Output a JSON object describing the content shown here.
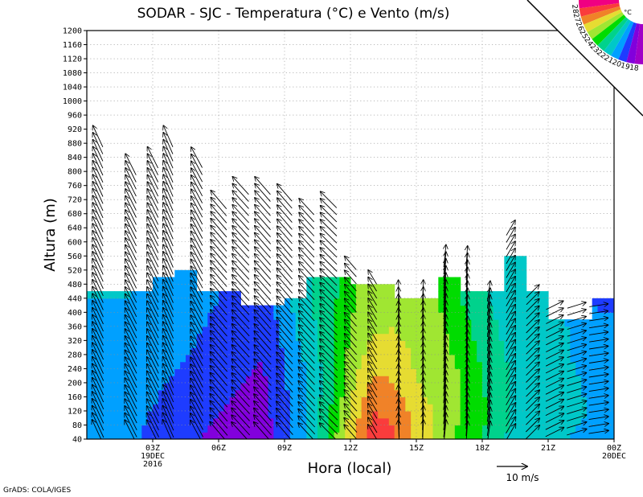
{
  "chart_data": {
    "type": "heatmap",
    "title": "SODAR - SJC - Temperatura (°C) e Vento (m/s)",
    "xlabel": "Hora (local)",
    "ylabel": "Altura (m)",
    "x_range_hours": [
      0,
      23.5
    ],
    "ylim": [
      40,
      1200
    ],
    "y_ticks": [
      40,
      80,
      120,
      160,
      200,
      240,
      280,
      320,
      360,
      400,
      440,
      480,
      520,
      560,
      600,
      640,
      680,
      720,
      760,
      800,
      840,
      880,
      920,
      960,
      1000,
      1040,
      1080,
      1120,
      1160,
      1200
    ],
    "x_ticks": [
      {
        "hour": 3,
        "label": "03Z",
        "sub1": "19DEC",
        "sub2": "2016"
      },
      {
        "hour": 6,
        "label": "06Z"
      },
      {
        "hour": 9,
        "label": "09Z"
      },
      {
        "hour": 12,
        "label": "12Z"
      },
      {
        "hour": 15,
        "label": "15Z"
      },
      {
        "hour": 18,
        "label": "18Z"
      },
      {
        "hour": 21,
        "label": "21Z"
      },
      {
        "hour": 24,
        "label": "00Z",
        "sub1": "20DEC"
      }
    ],
    "color_legend": {
      "unit": "°C",
      "levels": [
        "18",
        "19",
        "20",
        "21",
        "22",
        "23",
        "24",
        "25",
        "26",
        "27",
        "28"
      ],
      "colors": [
        "#a000c8",
        "#8200dc",
        "#1e3cff",
        "#00a0ff",
        "#00c8c8",
        "#00d28c",
        "#00dc00",
        "#a0e632",
        "#e6dc32",
        "#f08228",
        "#fa3c3c",
        "#f00082"
      ]
    },
    "data_top_profile": {
      "hours": [
        0,
        2,
        3,
        4,
        5,
        7,
        9,
        10,
        11,
        12,
        13,
        14,
        15,
        16,
        17,
        18,
        19,
        20,
        21,
        22,
        23,
        23.5
      ],
      "top_m": [
        460,
        460,
        500,
        520,
        460,
        420,
        440,
        500,
        500,
        480,
        480,
        440,
        440,
        500,
        460,
        460,
        560,
        460,
        380,
        380,
        440,
        440
      ]
    },
    "temperature_grid": {
      "hours": [
        0,
        2,
        4,
        6,
        8,
        10,
        11,
        12,
        13,
        14,
        15,
        16,
        17,
        18,
        19,
        20,
        21,
        22,
        23.5
      ],
      "heights_m": [
        40,
        120,
        200,
        280,
        360,
        440,
        520
      ],
      "values": [
        [
          20.5,
          20.6,
          20.8,
          20.9,
          21.0,
          21.0,
          21.0
        ],
        [
          20.2,
          20.4,
          20.6,
          20.8,
          20.9,
          21.0,
          21.0
        ],
        [
          19.2,
          19.5,
          19.9,
          20.2,
          20.4,
          20.5,
          20.5
        ],
        [
          18.8,
          19.0,
          19.3,
          19.6,
          19.8,
          20.0,
          20.0
        ],
        [
          18.5,
          18.6,
          18.8,
          19.0,
          19.2,
          19.6,
          19.6
        ],
        [
          20.8,
          20.9,
          21.0,
          21.2,
          21.6,
          21.8,
          21.8
        ],
        [
          23.0,
          22.8,
          22.5,
          22.5,
          22.6,
          22.5,
          22.5
        ],
        [
          25.8,
          25.2,
          24.6,
          24.3,
          24.0,
          23.8,
          23.8
        ],
        [
          27.4,
          27.0,
          26.2,
          25.5,
          24.8,
          24.6,
          24.6
        ],
        [
          27.2,
          26.8,
          26.0,
          25.5,
          25.0,
          24.8,
          24.8
        ],
        [
          25.8,
          25.5,
          25.0,
          24.8,
          24.5,
          24.4,
          24.4
        ],
        [
          24.6,
          24.8,
          24.6,
          24.4,
          24.2,
          24.0,
          24.0
        ],
        [
          23.8,
          24.0,
          24.0,
          23.8,
          23.5,
          23.0,
          23.0
        ],
        [
          23.0,
          23.2,
          23.0,
          22.8,
          22.5,
          22.2,
          22.2
        ],
        [
          22.0,
          22.2,
          22.2,
          22.0,
          21.8,
          21.5,
          21.5
        ],
        [
          21.5,
          21.6,
          21.5,
          21.5,
          21.4,
          21.2,
          21.2
        ],
        [
          21.2,
          21.3,
          21.3,
          21.2,
          21.1,
          21.0,
          21.0
        ],
        [
          21.0,
          21.1,
          21.1,
          21.0,
          21.0,
          20.8,
          20.8
        ],
        [
          20.8,
          20.9,
          20.8,
          20.6,
          20.3,
          19.5,
          19.5
        ]
      ]
    },
    "wind": {
      "hours": [
        0.5,
        2.0,
        3.0,
        3.7,
        5.0,
        6.0,
        7.0,
        8.0,
        9.0,
        10.0,
        11.0,
        12.0,
        13.0,
        14.2,
        15.3,
        16.3,
        17.3,
        18.3,
        19.3,
        20.3,
        21.3,
        22.3,
        23.3
      ],
      "top_m": [
        900,
        820,
        840,
        900,
        840,
        720,
        760,
        760,
        740,
        700,
        720,
        540,
        500,
        460,
        460,
        560,
        560,
        460,
        640,
        460,
        420,
        420,
        420
      ],
      "u": [
        -3.8,
        -4.0,
        -4.0,
        -3.6,
        -4.2,
        -5.8,
        -6.0,
        -5.8,
        -5.5,
        -5.5,
        -6.0,
        -4.2,
        -3.0,
        -0.3,
        0.3,
        0.8,
        0.5,
        1.0,
        3.2,
        4.5,
        6.0,
        6.5,
        6.5
      ],
      "v": [
        8.2,
        8.0,
        8.0,
        8.2,
        7.8,
        6.8,
        6.6,
        6.6,
        6.4,
        6.0,
        6.0,
        4.8,
        5.0,
        7.8,
        8.0,
        8.0,
        7.2,
        7.2,
        5.5,
        4.5,
        3.0,
        2.0,
        1.0
      ],
      "reference_vector": {
        "speed": 10,
        "label": "10 m/s"
      }
    },
    "footer": "GrADS: COLA/IGES"
  }
}
